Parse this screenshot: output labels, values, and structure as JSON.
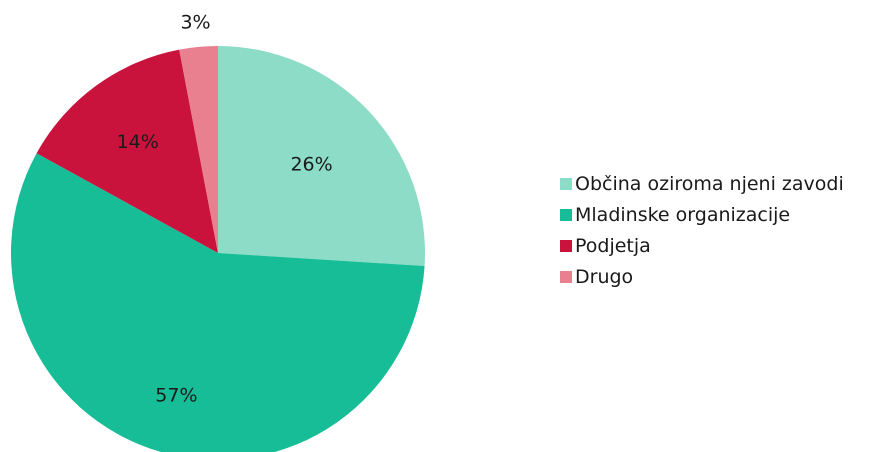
{
  "chart_data": {
    "type": "pie",
    "title": "",
    "start_angle_deg": 0,
    "direction": "clockwise",
    "legend_position": "right",
    "slices": [
      {
        "label": "Občina oziroma njeni zavodi",
        "value": 26,
        "value_label": "26%",
        "color": "#8ddcc8"
      },
      {
        "label": "Mladinske organizacije",
        "value": 57,
        "value_label": "57%",
        "color": "#17bd97"
      },
      {
        "label": "Podjetja",
        "value": 14,
        "value_label": "14%",
        "color": "#c9133d"
      },
      {
        "label": "Drugo",
        "value": 3,
        "value_label": "3%",
        "color": "#e8808f"
      }
    ]
  }
}
